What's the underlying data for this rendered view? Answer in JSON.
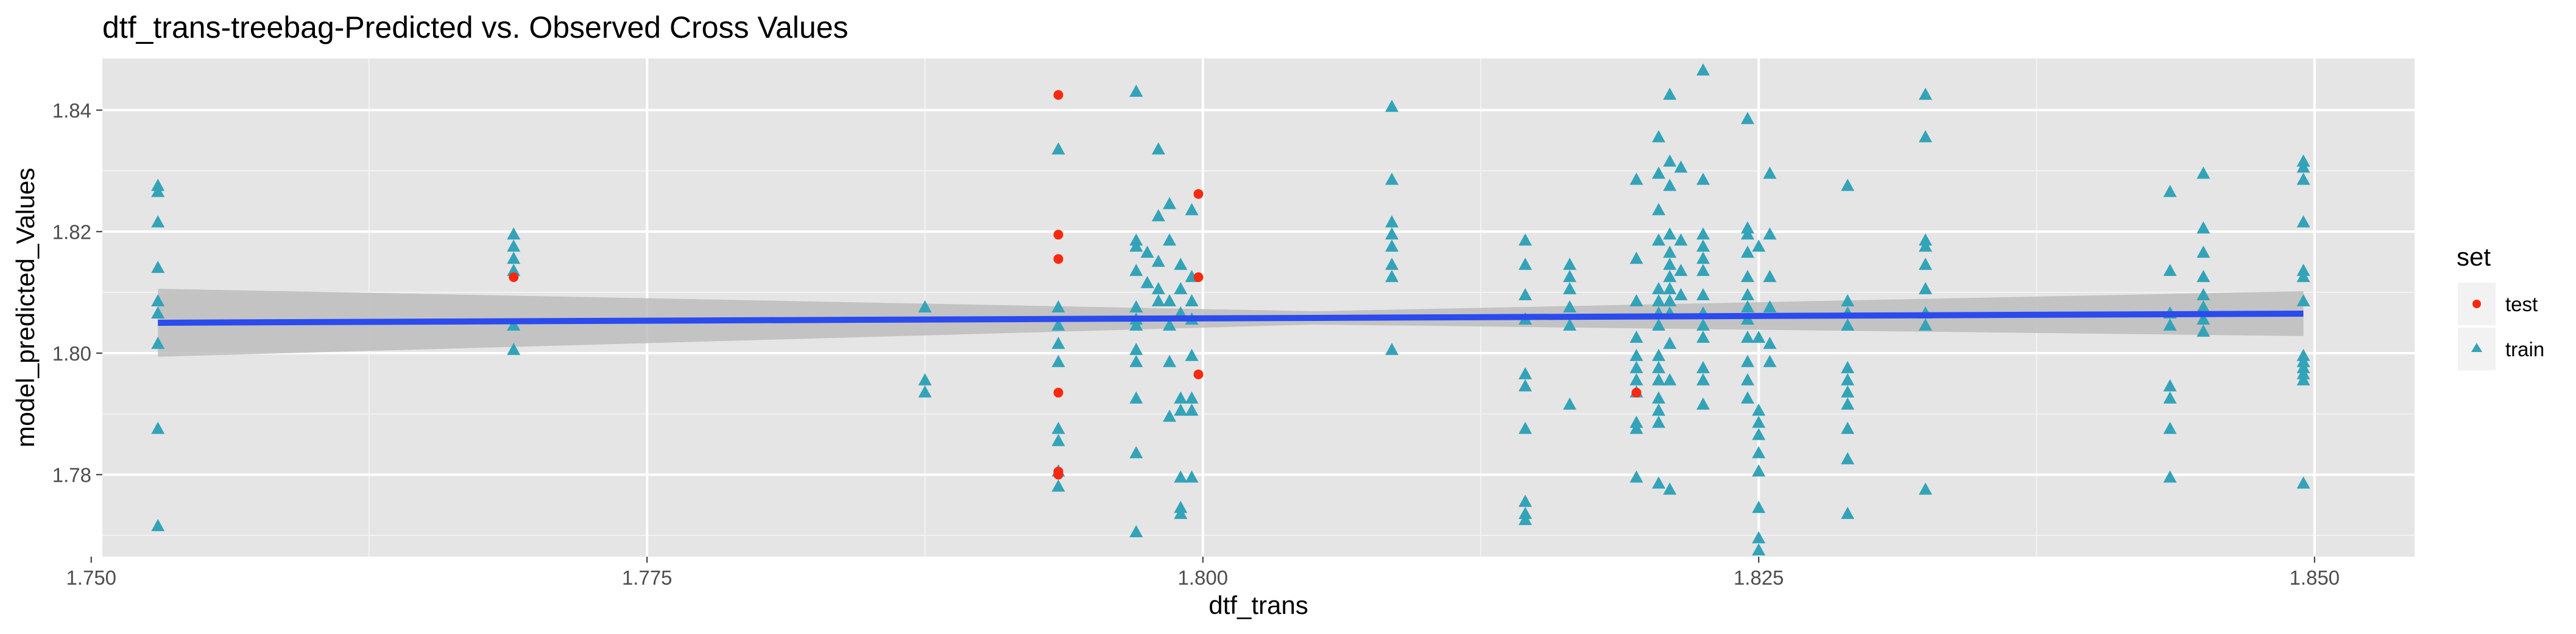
{
  "chart_data": {
    "type": "scatter",
    "title": "dtf_trans-treebag-Predicted vs. Observed Cross Values",
    "xlabel": "dtf_trans",
    "ylabel": "model_predicted_Values",
    "xlim": [
      1.7505,
      1.8545
    ],
    "ylim": [
      1.7665,
      1.8485
    ],
    "x_ticks": [
      1.75,
      1.775,
      1.8,
      1.825,
      1.85
    ],
    "x_tick_labels": [
      "1.750",
      "1.775",
      "1.800",
      "1.825",
      "1.850"
    ],
    "y_ticks": [
      1.78,
      1.8,
      1.82,
      1.84
    ],
    "y_tick_labels": [
      "1.78",
      "1.80",
      "1.82",
      "1.84"
    ],
    "grid": true,
    "legend": {
      "title": "set",
      "position": "right",
      "entries": [
        {
          "label": "test",
          "shape": "circle",
          "color": "#F8290E"
        },
        {
          "label": "train",
          "shape": "triangle",
          "color": "#33A3B8"
        }
      ]
    },
    "trend": {
      "method": "lm",
      "color": "#2B4BEE",
      "band_color": "#BDBDBD",
      "points": [
        {
          "x": 1.753,
          "y": 1.805,
          "lo": 1.7994,
          "hi": 1.8106
        },
        {
          "x": 1.805,
          "y": 1.8058,
          "lo": 1.8047,
          "hi": 1.8069
        },
        {
          "x": 1.8495,
          "y": 1.8065,
          "lo": 1.8028,
          "hi": 1.8102
        }
      ]
    },
    "series": [
      {
        "name": "train",
        "shape": "triangle",
        "color": "#33A3B8",
        "points": [
          [
            1.753,
            1.8275
          ],
          [
            1.753,
            1.8265
          ],
          [
            1.753,
            1.8215
          ],
          [
            1.753,
            1.814
          ],
          [
            1.753,
            1.8085
          ],
          [
            1.753,
            1.8065
          ],
          [
            1.753,
            1.8015
          ],
          [
            1.753,
            1.7875
          ],
          [
            1.753,
            1.7715
          ],
          [
            1.769,
            1.8195
          ],
          [
            1.769,
            1.8175
          ],
          [
            1.769,
            1.8155
          ],
          [
            1.769,
            1.8135
          ],
          [
            1.769,
            1.8045
          ],
          [
            1.769,
            1.8005
          ],
          [
            1.7875,
            1.8075
          ],
          [
            1.7875,
            1.7955
          ],
          [
            1.7875,
            1.7935
          ],
          [
            1.7935,
            1.8335
          ],
          [
            1.7935,
            1.8075
          ],
          [
            1.7935,
            1.8045
          ],
          [
            1.7935,
            1.8015
          ],
          [
            1.7935,
            1.7985
          ],
          [
            1.7935,
            1.7875
          ],
          [
            1.7935,
            1.7855
          ],
          [
            1.7935,
            1.7805
          ],
          [
            1.7935,
            1.778
          ],
          [
            1.797,
            1.843
          ],
          [
            1.797,
            1.8185
          ],
          [
            1.797,
            1.8175
          ],
          [
            1.797,
            1.8135
          ],
          [
            1.797,
            1.8075
          ],
          [
            1.797,
            1.8055
          ],
          [
            1.797,
            1.8045
          ],
          [
            1.797,
            1.8005
          ],
          [
            1.797,
            1.7985
          ],
          [
            1.797,
            1.7925
          ],
          [
            1.797,
            1.7835
          ],
          [
            1.797,
            1.7705
          ],
          [
            1.7975,
            1.8165
          ],
          [
            1.7975,
            1.8115
          ],
          [
            1.798,
            1.8335
          ],
          [
            1.798,
            1.8225
          ],
          [
            1.798,
            1.815
          ],
          [
            1.798,
            1.8105
          ],
          [
            1.798,
            1.8085
          ],
          [
            1.7985,
            1.8245
          ],
          [
            1.7985,
            1.8185
          ],
          [
            1.7985,
            1.8085
          ],
          [
            1.7985,
            1.8045
          ],
          [
            1.7985,
            1.7985
          ],
          [
            1.7985,
            1.7895
          ],
          [
            1.799,
            1.8145
          ],
          [
            1.799,
            1.8105
          ],
          [
            1.799,
            1.8065
          ],
          [
            1.799,
            1.7925
          ],
          [
            1.799,
            1.7905
          ],
          [
            1.799,
            1.7795
          ],
          [
            1.799,
            1.7745
          ],
          [
            1.799,
            1.7735
          ],
          [
            1.7995,
            1.8235
          ],
          [
            1.7995,
            1.8125
          ],
          [
            1.7995,
            1.8085
          ],
          [
            1.7995,
            1.8055
          ],
          [
            1.7995,
            1.7995
          ],
          [
            1.7995,
            1.7925
          ],
          [
            1.7995,
            1.7905
          ],
          [
            1.7995,
            1.7795
          ],
          [
            1.8085,
            1.8405
          ],
          [
            1.8085,
            1.8285
          ],
          [
            1.8085,
            1.8215
          ],
          [
            1.8085,
            1.8195
          ],
          [
            1.8085,
            1.8175
          ],
          [
            1.8085,
            1.8145
          ],
          [
            1.8085,
            1.8125
          ],
          [
            1.8085,
            1.8005
          ],
          [
            1.8145,
            1.8185
          ],
          [
            1.8145,
            1.8145
          ],
          [
            1.8145,
            1.8095
          ],
          [
            1.8145,
            1.8055
          ],
          [
            1.8145,
            1.7965
          ],
          [
            1.8145,
            1.7945
          ],
          [
            1.8145,
            1.7875
          ],
          [
            1.8145,
            1.7755
          ],
          [
            1.8145,
            1.7735
          ],
          [
            1.8145,
            1.7725
          ],
          [
            1.8165,
            1.8145
          ],
          [
            1.8165,
            1.8125
          ],
          [
            1.8165,
            1.8105
          ],
          [
            1.8165,
            1.8075
          ],
          [
            1.8165,
            1.8045
          ],
          [
            1.8165,
            1.7915
          ],
          [
            1.8195,
            1.8285
          ],
          [
            1.8195,
            1.8155
          ],
          [
            1.8195,
            1.8085
          ],
          [
            1.8195,
            1.8025
          ],
          [
            1.8195,
            1.7995
          ],
          [
            1.8195,
            1.7975
          ],
          [
            1.8195,
            1.7955
          ],
          [
            1.8195,
            1.7935
          ],
          [
            1.8195,
            1.7885
          ],
          [
            1.8195,
            1.7875
          ],
          [
            1.8195,
            1.7795
          ],
          [
            1.8205,
            1.8355
          ],
          [
            1.8205,
            1.8295
          ],
          [
            1.8205,
            1.8235
          ],
          [
            1.8205,
            1.8185
          ],
          [
            1.8205,
            1.8105
          ],
          [
            1.8205,
            1.8085
          ],
          [
            1.8205,
            1.8065
          ],
          [
            1.8205,
            1.8045
          ],
          [
            1.8205,
            1.7995
          ],
          [
            1.8205,
            1.7975
          ],
          [
            1.8205,
            1.7955
          ],
          [
            1.8205,
            1.7925
          ],
          [
            1.8205,
            1.7905
          ],
          [
            1.8205,
            1.7885
          ],
          [
            1.8205,
            1.7785
          ],
          [
            1.821,
            1.8425
          ],
          [
            1.821,
            1.8315
          ],
          [
            1.821,
            1.8275
          ],
          [
            1.821,
            1.8195
          ],
          [
            1.821,
            1.8165
          ],
          [
            1.821,
            1.8145
          ],
          [
            1.821,
            1.8125
          ],
          [
            1.821,
            1.8105
          ],
          [
            1.821,
            1.8085
          ],
          [
            1.821,
            1.8065
          ],
          [
            1.821,
            1.8015
          ],
          [
            1.821,
            1.7955
          ],
          [
            1.821,
            1.7775
          ],
          [
            1.8215,
            1.8305
          ],
          [
            1.8215,
            1.8185
          ],
          [
            1.8215,
            1.8135
          ],
          [
            1.8215,
            1.8095
          ],
          [
            1.8225,
            1.8465
          ],
          [
            1.8225,
            1.8285
          ],
          [
            1.8225,
            1.8195
          ],
          [
            1.8225,
            1.8175
          ],
          [
            1.8225,
            1.8155
          ],
          [
            1.8225,
            1.8135
          ],
          [
            1.8225,
            1.8095
          ],
          [
            1.8225,
            1.8065
          ],
          [
            1.8225,
            1.8045
          ],
          [
            1.8225,
            1.8025
          ],
          [
            1.8225,
            1.7975
          ],
          [
            1.8225,
            1.7955
          ],
          [
            1.8225,
            1.7915
          ],
          [
            1.8245,
            1.8385
          ],
          [
            1.8245,
            1.8205
          ],
          [
            1.8245,
            1.8195
          ],
          [
            1.8245,
            1.8165
          ],
          [
            1.8245,
            1.8125
          ],
          [
            1.8245,
            1.8095
          ],
          [
            1.8245,
            1.8075
          ],
          [
            1.8245,
            1.8055
          ],
          [
            1.8245,
            1.8025
          ],
          [
            1.8245,
            1.7985
          ],
          [
            1.8245,
            1.7955
          ],
          [
            1.8245,
            1.7925
          ],
          [
            1.825,
            1.8175
          ],
          [
            1.825,
            1.8025
          ],
          [
            1.825,
            1.7905
          ],
          [
            1.825,
            1.7885
          ],
          [
            1.825,
            1.7865
          ],
          [
            1.825,
            1.7835
          ],
          [
            1.825,
            1.7805
          ],
          [
            1.825,
            1.7745
          ],
          [
            1.825,
            1.7695
          ],
          [
            1.825,
            1.7675
          ],
          [
            1.8255,
            1.8295
          ],
          [
            1.8255,
            1.8195
          ],
          [
            1.8255,
            1.8125
          ],
          [
            1.8255,
            1.8075
          ],
          [
            1.8255,
            1.8015
          ],
          [
            1.8255,
            1.7985
          ],
          [
            1.829,
            1.8275
          ],
          [
            1.829,
            1.8085
          ],
          [
            1.829,
            1.8065
          ],
          [
            1.829,
            1.8045
          ],
          [
            1.829,
            1.7975
          ],
          [
            1.829,
            1.7955
          ],
          [
            1.829,
            1.7935
          ],
          [
            1.829,
            1.7915
          ],
          [
            1.829,
            1.7875
          ],
          [
            1.829,
            1.7825
          ],
          [
            1.829,
            1.7735
          ],
          [
            1.8325,
            1.8425
          ],
          [
            1.8325,
            1.8355
          ],
          [
            1.8325,
            1.8185
          ],
          [
            1.8325,
            1.8175
          ],
          [
            1.8325,
            1.8145
          ],
          [
            1.8325,
            1.8105
          ],
          [
            1.8325,
            1.8065
          ],
          [
            1.8325,
            1.8045
          ],
          [
            1.8325,
            1.7775
          ],
          [
            1.8435,
            1.8265
          ],
          [
            1.8435,
            1.8135
          ],
          [
            1.8435,
            1.8065
          ],
          [
            1.8435,
            1.8045
          ],
          [
            1.8435,
            1.7945
          ],
          [
            1.8435,
            1.7925
          ],
          [
            1.8435,
            1.7875
          ],
          [
            1.8435,
            1.7795
          ],
          [
            1.845,
            1.8295
          ],
          [
            1.845,
            1.8205
          ],
          [
            1.845,
            1.8165
          ],
          [
            1.845,
            1.8125
          ],
          [
            1.845,
            1.8095
          ],
          [
            1.845,
            1.8075
          ],
          [
            1.845,
            1.8055
          ],
          [
            1.845,
            1.8035
          ],
          [
            1.8495,
            1.8315
          ],
          [
            1.8495,
            1.8305
          ],
          [
            1.8495,
            1.8285
          ],
          [
            1.8495,
            1.8215
          ],
          [
            1.8495,
            1.8135
          ],
          [
            1.8495,
            1.8125
          ],
          [
            1.8495,
            1.8085
          ],
          [
            1.8495,
            1.7995
          ],
          [
            1.8495,
            1.7985
          ],
          [
            1.8495,
            1.7975
          ],
          [
            1.8495,
            1.7965
          ],
          [
            1.8495,
            1.7955
          ],
          [
            1.8495,
            1.7785
          ]
        ]
      },
      {
        "name": "test",
        "shape": "circle",
        "color": "#F8290E",
        "points": [
          [
            1.769,
            1.8125
          ],
          [
            1.7935,
            1.8425
          ],
          [
            1.7935,
            1.8195
          ],
          [
            1.7935,
            1.8155
          ],
          [
            1.7935,
            1.7935
          ],
          [
            1.7935,
            1.7805
          ],
          [
            1.7935,
            1.78
          ],
          [
            1.7998,
            1.8262
          ],
          [
            1.7998,
            1.8125
          ],
          [
            1.7998,
            1.7965
          ],
          [
            1.8195,
            1.7935
          ]
        ]
      }
    ]
  }
}
